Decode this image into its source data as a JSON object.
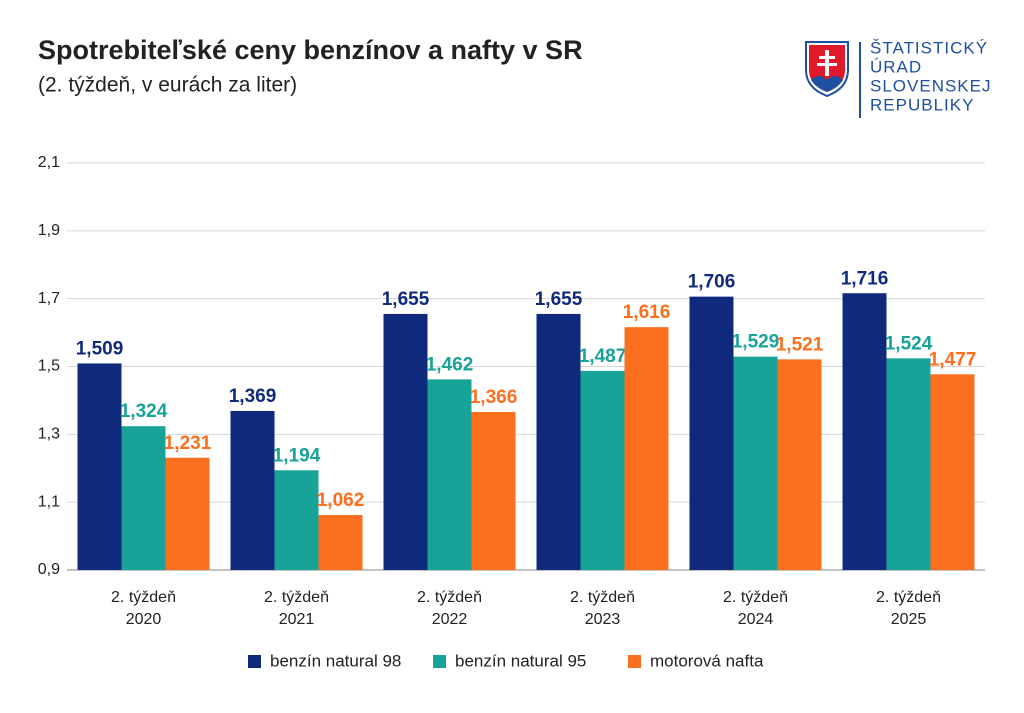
{
  "chart_data": {
    "type": "bar",
    "title": "Spotrebiteľské ceny benzínov a nafty v SR",
    "subtitle": "(2. týždeň, v eurách za liter)",
    "logo_lines": [
      "ŠTATISTICKÝ",
      "ÚRAD",
      "SLOVENSKEJ",
      "REPUBLIKY"
    ],
    "categories": [
      [
        "2. týždeň",
        "2020"
      ],
      [
        "2. týždeň",
        "2021"
      ],
      [
        "2. týždeň",
        "2022"
      ],
      [
        "2. týždeň",
        "2023"
      ],
      [
        "2. týždeň",
        "2024"
      ],
      [
        "2. týždeň",
        "2025"
      ]
    ],
    "series": [
      {
        "name": "benzín natural 98",
        "color": "#0f2a7d",
        "values": [
          1.509,
          1.369,
          1.655,
          1.655,
          1.706,
          1.716
        ],
        "value_labels": [
          "1,509",
          "1,369",
          "1,655",
          "1,655",
          "1,706",
          "1,716"
        ]
      },
      {
        "name": "benzín natural 95",
        "color": "#17a398",
        "values": [
          1.324,
          1.194,
          1.462,
          1.487,
          1.529,
          1.524
        ],
        "value_labels": [
          "1,324",
          "1,194",
          "1,462",
          "1,487",
          "1,529",
          "1,524"
        ]
      },
      {
        "name": "motorová nafta",
        "color": "#fb6f1e",
        "values": [
          1.231,
          1.062,
          1.366,
          1.616,
          1.521,
          1.477
        ],
        "value_labels": [
          "1,231",
          "1,062",
          "1,366",
          "1,616",
          "1,521",
          "1,477"
        ]
      }
    ],
    "ylim": [
      0.9,
      2.1
    ],
    "yticks": [
      {
        "value": 0.9,
        "label": "0,9"
      },
      {
        "value": 1.1,
        "label": "1,1"
      },
      {
        "value": 1.3,
        "label": "1,3"
      },
      {
        "value": 1.5,
        "label": "1,5"
      },
      {
        "value": 1.7,
        "label": "1,7"
      },
      {
        "value": 1.9,
        "label": "1,9"
      },
      {
        "value": 2.1,
        "label": "2,1"
      }
    ],
    "grid": true
  }
}
